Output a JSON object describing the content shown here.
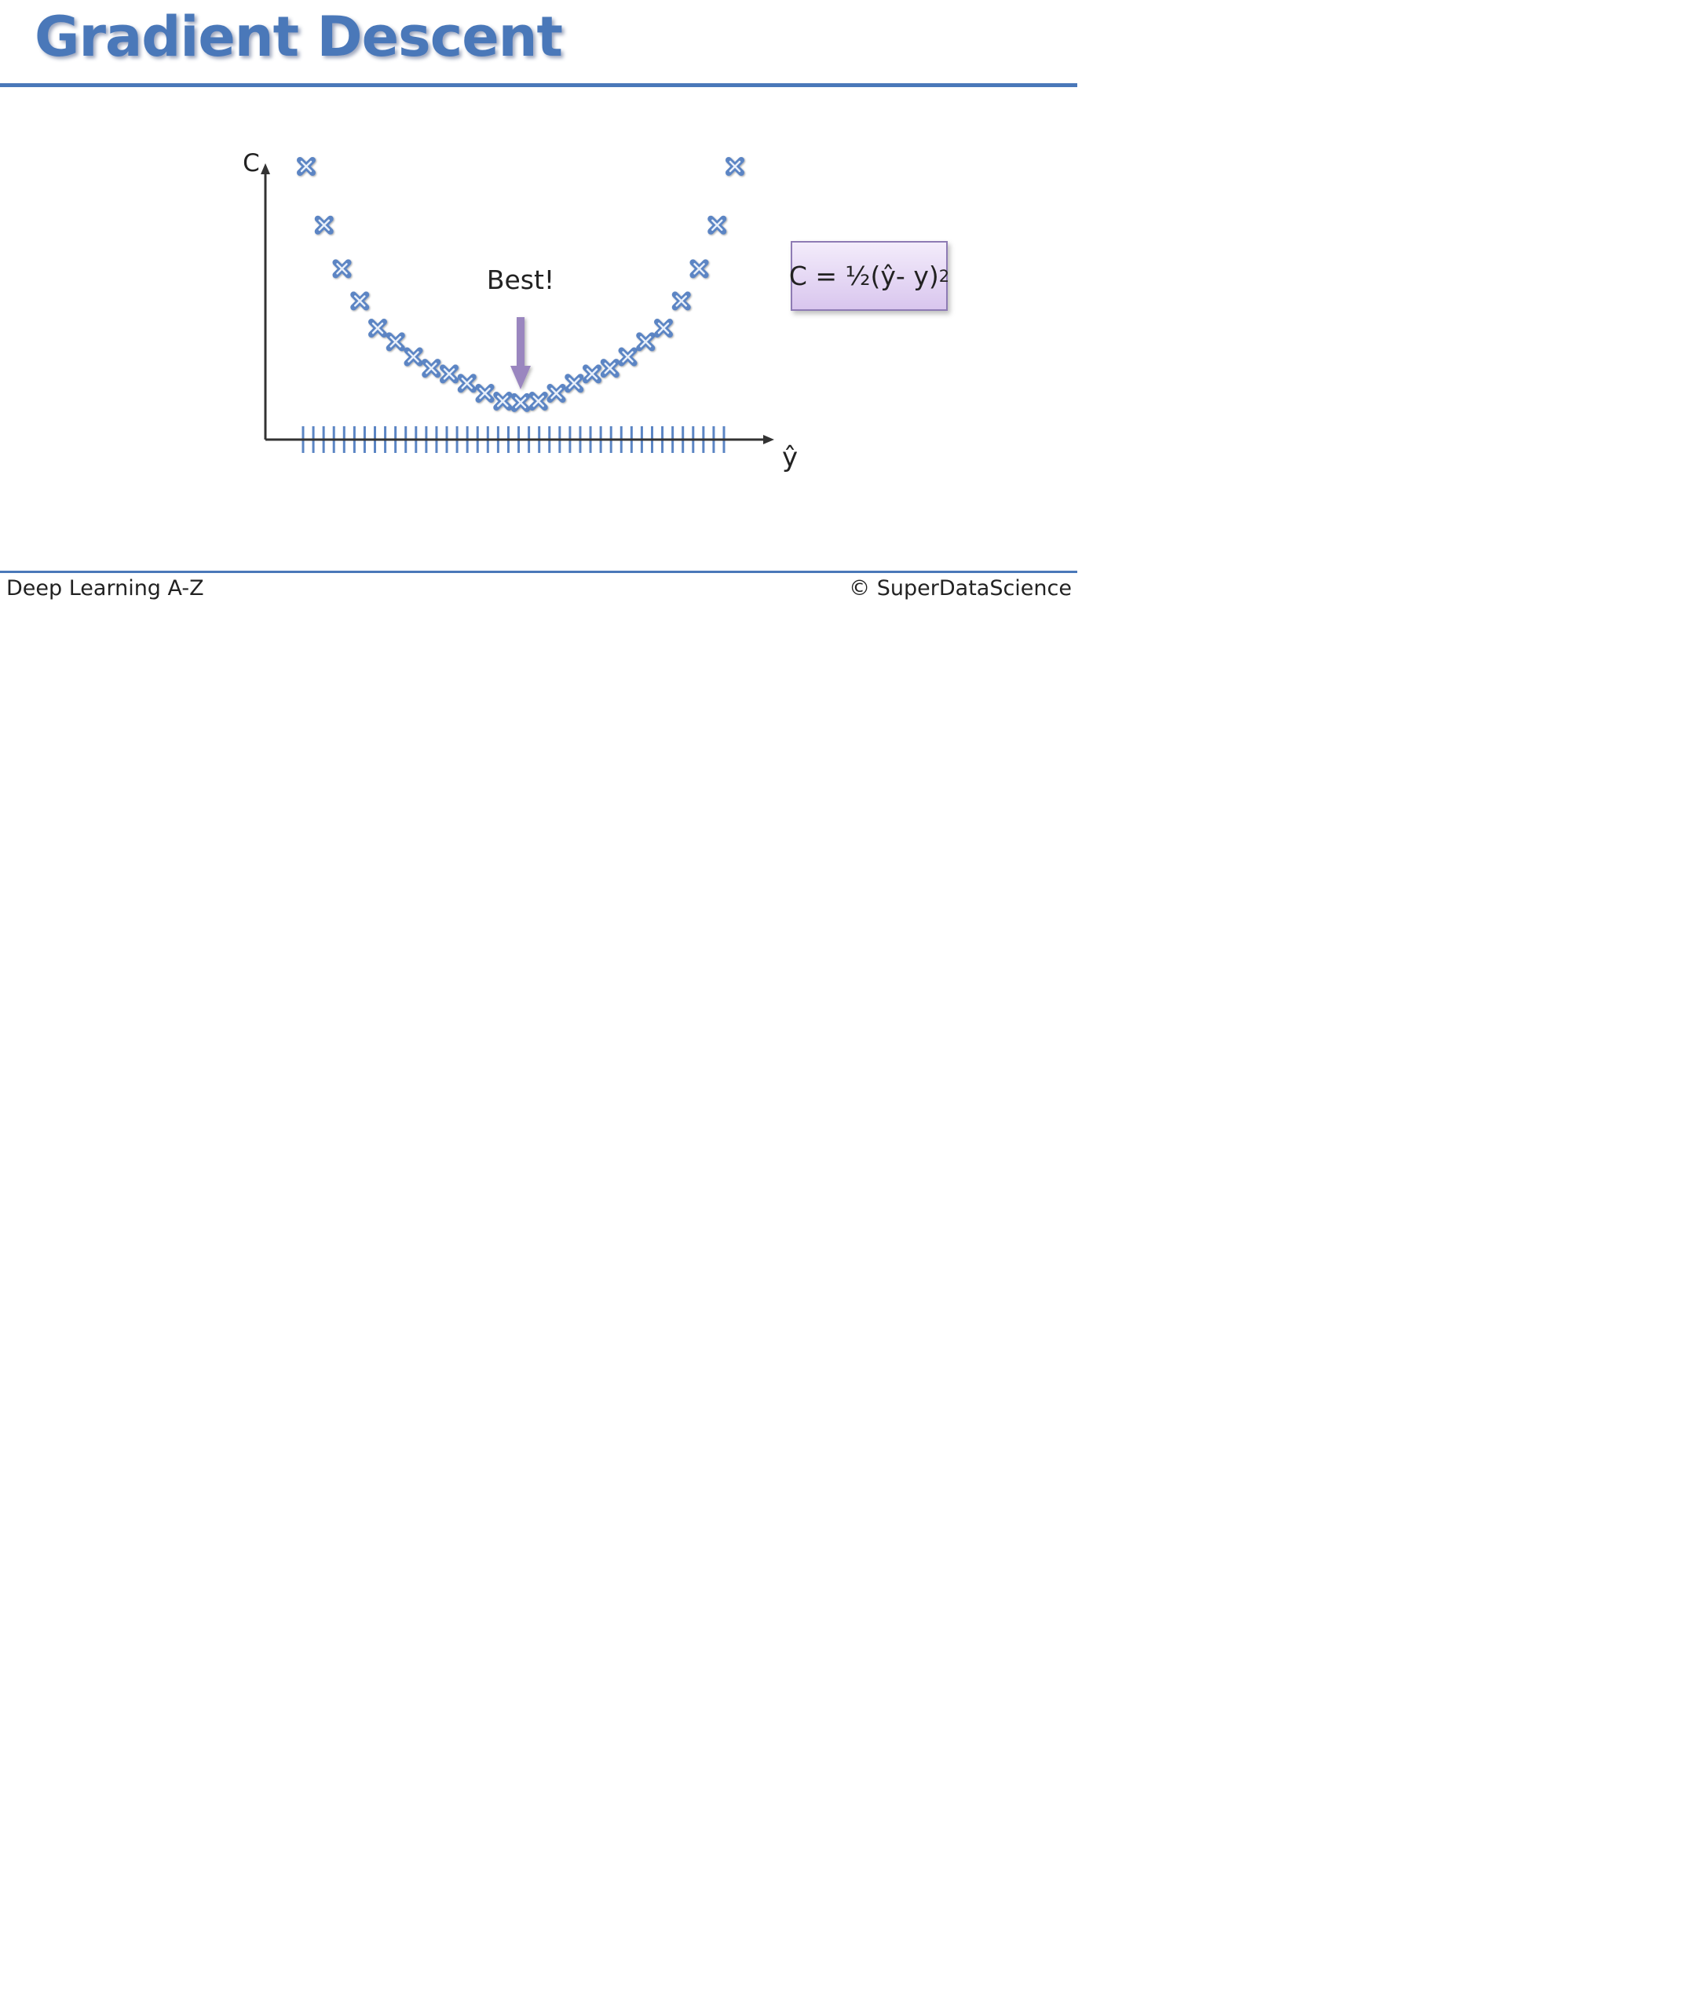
{
  "slide": {
    "title": "Gradient Descent",
    "formula": {
      "base": "C = ½(ŷ- y)",
      "exponent": "2"
    },
    "footer_left": "Deep Learning A-Z",
    "footer_right": "© SuperDataScience"
  },
  "colors": {
    "accent": "#4a78b9",
    "marker": "#5b85c4",
    "arrow": "#9a86bf",
    "formula_fill": "#e4d6f3",
    "axis": "#333333"
  },
  "chart_data": {
    "type": "scatter",
    "xlabel": "ŷ",
    "ylabel": "C",
    "marker": "x-icon",
    "annotation": {
      "text": "Best!",
      "x": 12,
      "pointer": "down-arrow-icon"
    },
    "x": [
      0,
      1,
      2,
      3,
      4,
      5,
      6,
      7,
      8,
      9,
      10,
      11,
      12,
      13,
      14,
      15,
      16,
      17,
      18,
      19,
      20,
      21,
      22,
      23,
      24
    ],
    "y": [
      340,
      258,
      197,
      152,
      114,
      95,
      74,
      58,
      50,
      37,
      23,
      12,
      10,
      12,
      23,
      37,
      50,
      58,
      74,
      95,
      114,
      152,
      197,
      258,
      340
    ],
    "x_ticks": 42,
    "grid": false,
    "legend": "none"
  }
}
